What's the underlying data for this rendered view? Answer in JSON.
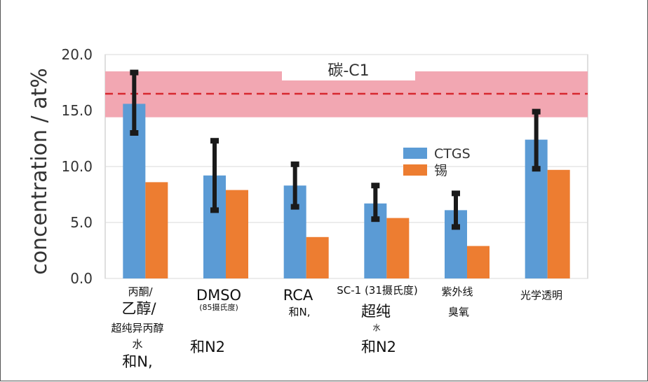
{
  "chart_data": {
    "type": "bar",
    "ylabel": "concentration / at%",
    "ylim": [
      0,
      20
    ],
    "yticks": [
      "0.0",
      "5.0",
      "10.0",
      "15.0",
      "20.0"
    ],
    "grid": true,
    "reference_band": {
      "label": "碳-C1",
      "low": 14.4,
      "high": 18.5,
      "line": 16.5,
      "color": "#f2a7b2",
      "line_color": "#d7282f"
    },
    "legend_position": "center-right",
    "categories": [
      {
        "lines": [
          "丙酮/",
          "乙醇/",
          "超纯异丙醇",
          "水",
          "和N,"
        ]
      },
      {
        "lines": [
          "DMSO",
          "(85摄氏度)",
          "和N2"
        ]
      },
      {
        "lines": [
          "RCA",
          "和N,"
        ]
      },
      {
        "lines": [
          "SC-1 (31摄氏度)",
          "超纯",
          "水",
          "和N2"
        ]
      },
      {
        "lines": [
          "紫外线",
          "臭氧"
        ]
      },
      {
        "lines": [
          "光学透明"
        ]
      }
    ],
    "series": [
      {
        "name": "CTGS",
        "color": "#5b9bd5",
        "values": [
          15.6,
          9.2,
          8.3,
          6.7,
          6.1,
          12.4
        ],
        "error_low": [
          13.0,
          6.1,
          6.4,
          5.3,
          4.6,
          9.8
        ],
        "error_high": [
          18.4,
          12.3,
          10.2,
          8.3,
          7.6,
          14.9
        ]
      },
      {
        "name": "锡",
        "color": "#ed7d31",
        "values": [
          8.6,
          7.9,
          3.7,
          5.4,
          2.9,
          9.7
        ]
      }
    ]
  }
}
